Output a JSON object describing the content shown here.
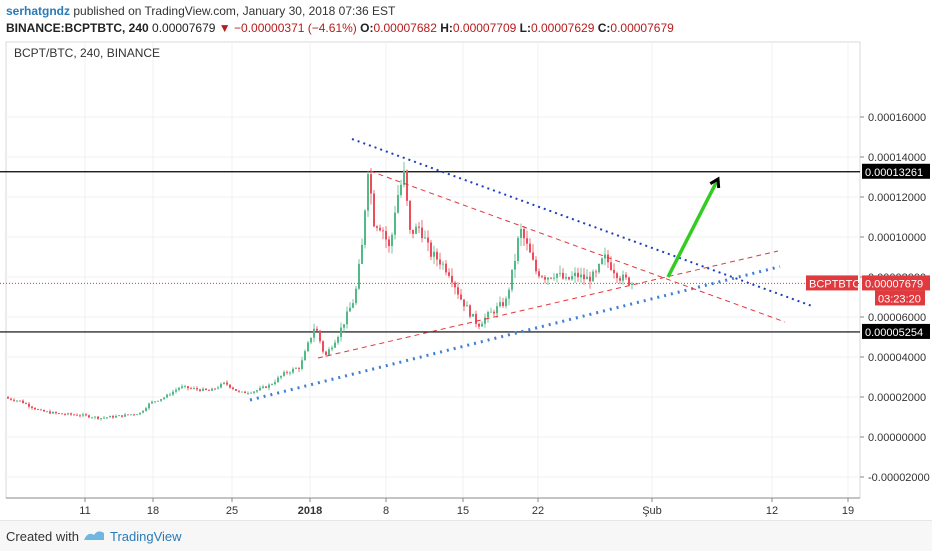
{
  "header": {
    "author": "serhatgndz",
    "published": "published on TradingView.com, January 30, 2018 07:36 EST",
    "symbol": "BINANCE:BCPTBTC, 240",
    "last": "0.00007679",
    "change_arrow": "▼",
    "change": "−0.00000371 (−4.61%)",
    "o_label": "O:",
    "o": "0.00007682",
    "h_label": "H:",
    "h": "0.00007709",
    "l_label": "L:",
    "l": "0.00007629",
    "c_label": "C:",
    "c": "0.00007679"
  },
  "chart_title": "BCPT/BTC, 240, BINANCE",
  "footer": {
    "created": "Created with",
    "brand": "TradingView"
  },
  "colors": {
    "up": "#53b987",
    "down": "#eb4d5c",
    "blue_line": "#1f3fbf",
    "dash_red": "#e0393e",
    "light_blue_line": "#3f7fd6",
    "green_arrow": "#33cc22",
    "price_label": "#e0393e"
  },
  "chart_data": {
    "type": "candlestick",
    "ylim": [
      -3e-05,
      0.00018
    ],
    "y_ticks": [
      "0.00016000",
      "0.00014000",
      "0.00012000",
      "0.00010000",
      "0.00008000",
      "0.00006000",
      "0.00004000",
      "0.00002000",
      "0.00000000",
      "-0.00002000"
    ],
    "x_ticks": [
      "11",
      "18",
      "25",
      "2018",
      "8",
      "15",
      "22",
      "Şub",
      "12",
      "19"
    ],
    "price_labels": {
      "top_level": "0.00013261",
      "symbol_tag": "BCPTBTC",
      "current": "0.00007679",
      "countdown": "03:23:20",
      "bottom_level": "0.00005254"
    },
    "horizontal_levels": [
      0.00013261,
      5.254e-05
    ],
    "current_price": 7.679e-05,
    "price_path": [
      [
        0,
        2e-05
      ],
      [
        20,
        1.8e-05
      ],
      [
        40,
        1.3e-05
      ],
      [
        60,
        1.15e-05
      ],
      [
        80,
        1.1e-05
      ],
      [
        100,
        9.5e-06
      ],
      [
        120,
        1.05e-05
      ],
      [
        140,
        1.2e-05
      ],
      [
        150,
        1.7e-05
      ],
      [
        165,
        2e-05
      ],
      [
        180,
        2.5e-05
      ],
      [
        195,
        2.4e-05
      ],
      [
        210,
        2.3e-05
      ],
      [
        225,
        2.7e-05
      ],
      [
        240,
        2.2e-05
      ],
      [
        255,
        2.3e-05
      ],
      [
        270,
        2.6e-05
      ],
      [
        285,
        3.2e-05
      ],
      [
        300,
        3.5e-05
      ],
      [
        315,
        5.6e-05
      ],
      [
        325,
        4e-05
      ],
      [
        340,
        5.3e-05
      ],
      [
        355,
        7e-05
      ],
      [
        362,
        9.5e-05
      ],
      [
        368,
        0.000135
      ],
      [
        374,
        0.000108
      ],
      [
        382,
        0.000105
      ],
      [
        390,
        9.3e-05
      ],
      [
        396,
        0.000118
      ],
      [
        404,
        0.000131
      ],
      [
        410,
        0.000102
      ],
      [
        420,
        0.000105
      ],
      [
        430,
        9.2e-05
      ],
      [
        440,
        8.8e-05
      ],
      [
        450,
        8.2e-05
      ],
      [
        460,
        7e-05
      ],
      [
        470,
        6.2e-05
      ],
      [
        478,
        5.6e-05
      ],
      [
        486,
        6e-05
      ],
      [
        496,
        6.4e-05
      ],
      [
        506,
        6.8e-05
      ],
      [
        514,
        8.6e-05
      ],
      [
        520,
        0.000104
      ],
      [
        528,
        9.4e-05
      ],
      [
        536,
        8.3e-05
      ],
      [
        546,
        8e-05
      ],
      [
        556,
        8.2e-05
      ],
      [
        566,
        7.8e-05
      ],
      [
        576,
        8.1e-05
      ],
      [
        586,
        7.9e-05
      ],
      [
        596,
        8.1e-05
      ],
      [
        604,
        9e-05
      ],
      [
        612,
        8.5e-05
      ],
      [
        620,
        8e-05
      ],
      [
        628,
        7.8e-05
      ],
      [
        633,
        7.68e-05
      ]
    ]
  }
}
